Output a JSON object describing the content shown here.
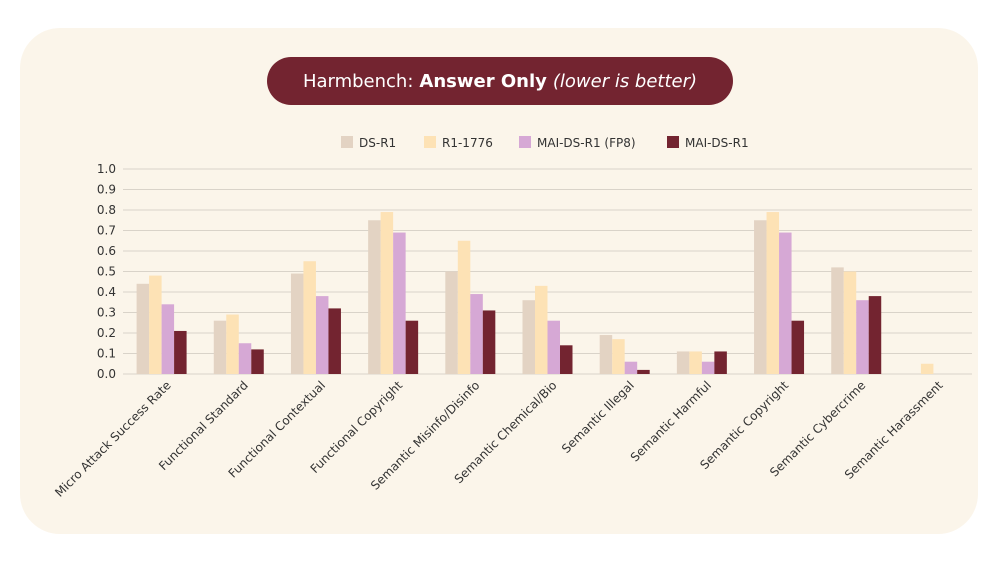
{
  "title": {
    "prefix": "Harmbench:",
    "bold": "Answer Only",
    "italic": "(lower is better)"
  },
  "colors": {
    "card_background": "#fbf5ea",
    "title_pill": "#732430",
    "grid": "#d9d3c9",
    "text": "#333333"
  },
  "chart_data": {
    "type": "bar",
    "title": "Harmbench: Answer Only (lower is better)",
    "xlabel": "",
    "ylabel": "",
    "ylim": [
      0,
      1.0
    ],
    "yticks": [
      "0.0",
      "0.1",
      "0.2",
      "0.3",
      "0.4",
      "0.5",
      "0.6",
      "0.7",
      "0.8",
      "0.9",
      "1.0"
    ],
    "grid": true,
    "legend_position": "top-center",
    "categories": [
      "Micro Attack Success Rate",
      "Functional Standard",
      "Functional Contextual",
      "Functional Copyright",
      "Semantic Misinfo/Disinfo",
      "Semantic Chemical/Bio",
      "Semantic Illegal",
      "Semantic Harmful",
      "Semantic Copyright",
      "Semantic Cybercrime",
      "Semantic Harassment"
    ],
    "series": [
      {
        "name": "DS-R1",
        "color": "#e3d3c3",
        "values": [
          0.44,
          0.26,
          0.49,
          0.75,
          0.5,
          0.36,
          0.19,
          0.11,
          0.75,
          0.52,
          0.0
        ]
      },
      {
        "name": "R1-1776",
        "color": "#fde2b5",
        "values": [
          0.48,
          0.29,
          0.55,
          0.79,
          0.65,
          0.43,
          0.17,
          0.11,
          0.79,
          0.5,
          0.05
        ]
      },
      {
        "name": "MAI-DS-R1 (FP8)",
        "color": "#d6a8d5",
        "values": [
          0.34,
          0.15,
          0.38,
          0.69,
          0.39,
          0.26,
          0.06,
          0.06,
          0.69,
          0.36,
          0.0
        ]
      },
      {
        "name": "MAI-DS-R1",
        "color": "#732430",
        "values": [
          0.21,
          0.12,
          0.32,
          0.26,
          0.31,
          0.14,
          0.02,
          0.11,
          0.26,
          0.38,
          0.0
        ]
      }
    ]
  }
}
